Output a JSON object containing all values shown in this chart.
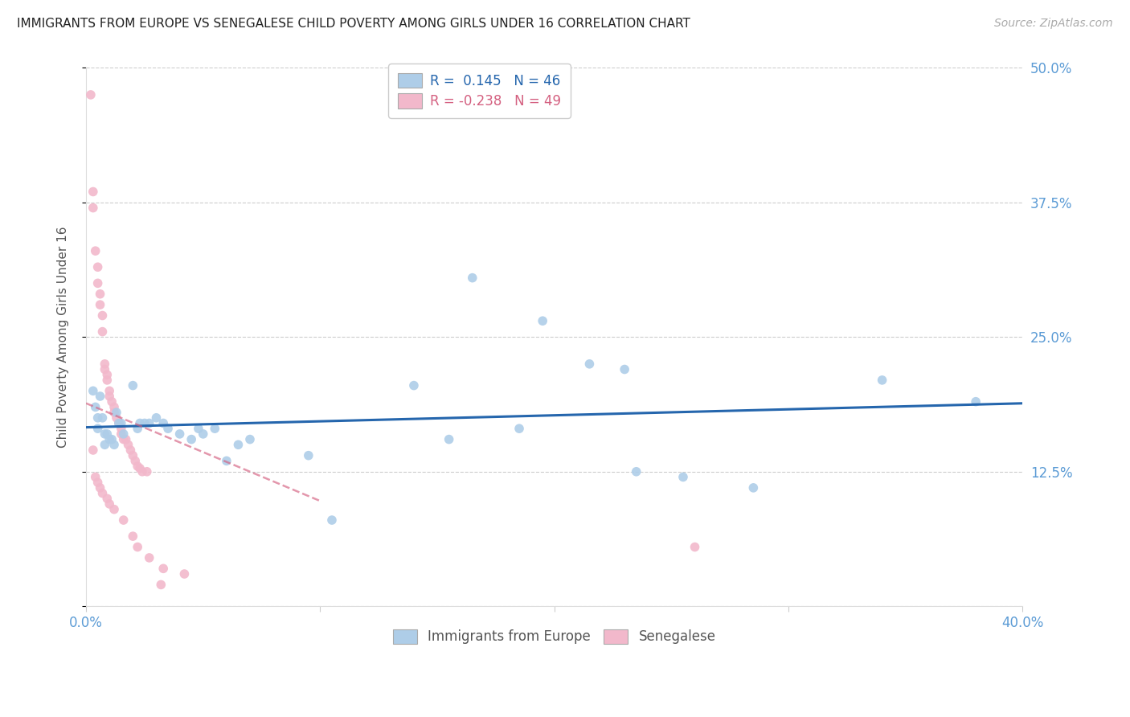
{
  "title": "IMMIGRANTS FROM EUROPE VS SENEGALESE CHILD POVERTY AMONG GIRLS UNDER 16 CORRELATION CHART",
  "source": "Source: ZipAtlas.com",
  "ylabel": "Child Poverty Among Girls Under 16",
  "x_min": 0.0,
  "x_max": 0.4,
  "y_min": 0.0,
  "y_max": 0.5,
  "y_ticks": [
    0.0,
    0.125,
    0.25,
    0.375,
    0.5
  ],
  "y_tick_labels_right": [
    "",
    "12.5%",
    "25.0%",
    "37.5%",
    "50.0%"
  ],
  "blue_R": 0.145,
  "blue_N": 46,
  "pink_R": -0.238,
  "pink_N": 49,
  "blue_color": "#aecde8",
  "pink_color": "#f2b8cb",
  "blue_line_color": "#2566ad",
  "pink_line_color": "#d46080",
  "blue_scatter": [
    [
      0.003,
      0.2
    ],
    [
      0.004,
      0.185
    ],
    [
      0.005,
      0.175
    ],
    [
      0.005,
      0.165
    ],
    [
      0.006,
      0.195
    ],
    [
      0.007,
      0.175
    ],
    [
      0.008,
      0.16
    ],
    [
      0.008,
      0.15
    ],
    [
      0.009,
      0.16
    ],
    [
      0.01,
      0.155
    ],
    [
      0.011,
      0.155
    ],
    [
      0.012,
      0.15
    ],
    [
      0.013,
      0.18
    ],
    [
      0.014,
      0.17
    ],
    [
      0.015,
      0.17
    ],
    [
      0.016,
      0.16
    ],
    [
      0.02,
      0.205
    ],
    [
      0.022,
      0.165
    ],
    [
      0.023,
      0.17
    ],
    [
      0.025,
      0.17
    ],
    [
      0.027,
      0.17
    ],
    [
      0.03,
      0.175
    ],
    [
      0.033,
      0.17
    ],
    [
      0.035,
      0.165
    ],
    [
      0.04,
      0.16
    ],
    [
      0.045,
      0.155
    ],
    [
      0.048,
      0.165
    ],
    [
      0.05,
      0.16
    ],
    [
      0.055,
      0.165
    ],
    [
      0.06,
      0.135
    ],
    [
      0.065,
      0.15
    ],
    [
      0.07,
      0.155
    ],
    [
      0.095,
      0.14
    ],
    [
      0.105,
      0.08
    ],
    [
      0.14,
      0.205
    ],
    [
      0.155,
      0.155
    ],
    [
      0.165,
      0.305
    ],
    [
      0.185,
      0.165
    ],
    [
      0.195,
      0.265
    ],
    [
      0.215,
      0.225
    ],
    [
      0.23,
      0.22
    ],
    [
      0.235,
      0.125
    ],
    [
      0.255,
      0.12
    ],
    [
      0.285,
      0.11
    ],
    [
      0.34,
      0.21
    ],
    [
      0.38,
      0.19
    ]
  ],
  "pink_scatter": [
    [
      0.002,
      0.475
    ],
    [
      0.003,
      0.385
    ],
    [
      0.003,
      0.37
    ],
    [
      0.004,
      0.33
    ],
    [
      0.005,
      0.315
    ],
    [
      0.005,
      0.3
    ],
    [
      0.006,
      0.29
    ],
    [
      0.006,
      0.28
    ],
    [
      0.007,
      0.27
    ],
    [
      0.007,
      0.255
    ],
    [
      0.008,
      0.225
    ],
    [
      0.008,
      0.22
    ],
    [
      0.009,
      0.215
    ],
    [
      0.009,
      0.21
    ],
    [
      0.01,
      0.2
    ],
    [
      0.01,
      0.195
    ],
    [
      0.011,
      0.19
    ],
    [
      0.012,
      0.185
    ],
    [
      0.012,
      0.18
    ],
    [
      0.013,
      0.175
    ],
    [
      0.014,
      0.17
    ],
    [
      0.015,
      0.165
    ],
    [
      0.015,
      0.16
    ],
    [
      0.016,
      0.155
    ],
    [
      0.017,
      0.155
    ],
    [
      0.018,
      0.15
    ],
    [
      0.019,
      0.145
    ],
    [
      0.02,
      0.14
    ],
    [
      0.021,
      0.135
    ],
    [
      0.022,
      0.13
    ],
    [
      0.023,
      0.128
    ],
    [
      0.024,
      0.125
    ],
    [
      0.026,
      0.125
    ],
    [
      0.004,
      0.12
    ],
    [
      0.005,
      0.115
    ],
    [
      0.006,
      0.11
    ],
    [
      0.007,
      0.105
    ],
    [
      0.009,
      0.1
    ],
    [
      0.01,
      0.095
    ],
    [
      0.012,
      0.09
    ],
    [
      0.016,
      0.08
    ],
    [
      0.02,
      0.065
    ],
    [
      0.022,
      0.055
    ],
    [
      0.027,
      0.045
    ],
    [
      0.033,
      0.035
    ],
    [
      0.042,
      0.03
    ],
    [
      0.003,
      0.145
    ],
    [
      0.26,
      0.055
    ],
    [
      0.032,
      0.02
    ]
  ],
  "background_color": "#ffffff",
  "grid_color": "#cccccc",
  "title_color": "#222222",
  "axis_tick_color": "#5b9bd5",
  "ylabel_color": "#555555",
  "marker_size": 70
}
